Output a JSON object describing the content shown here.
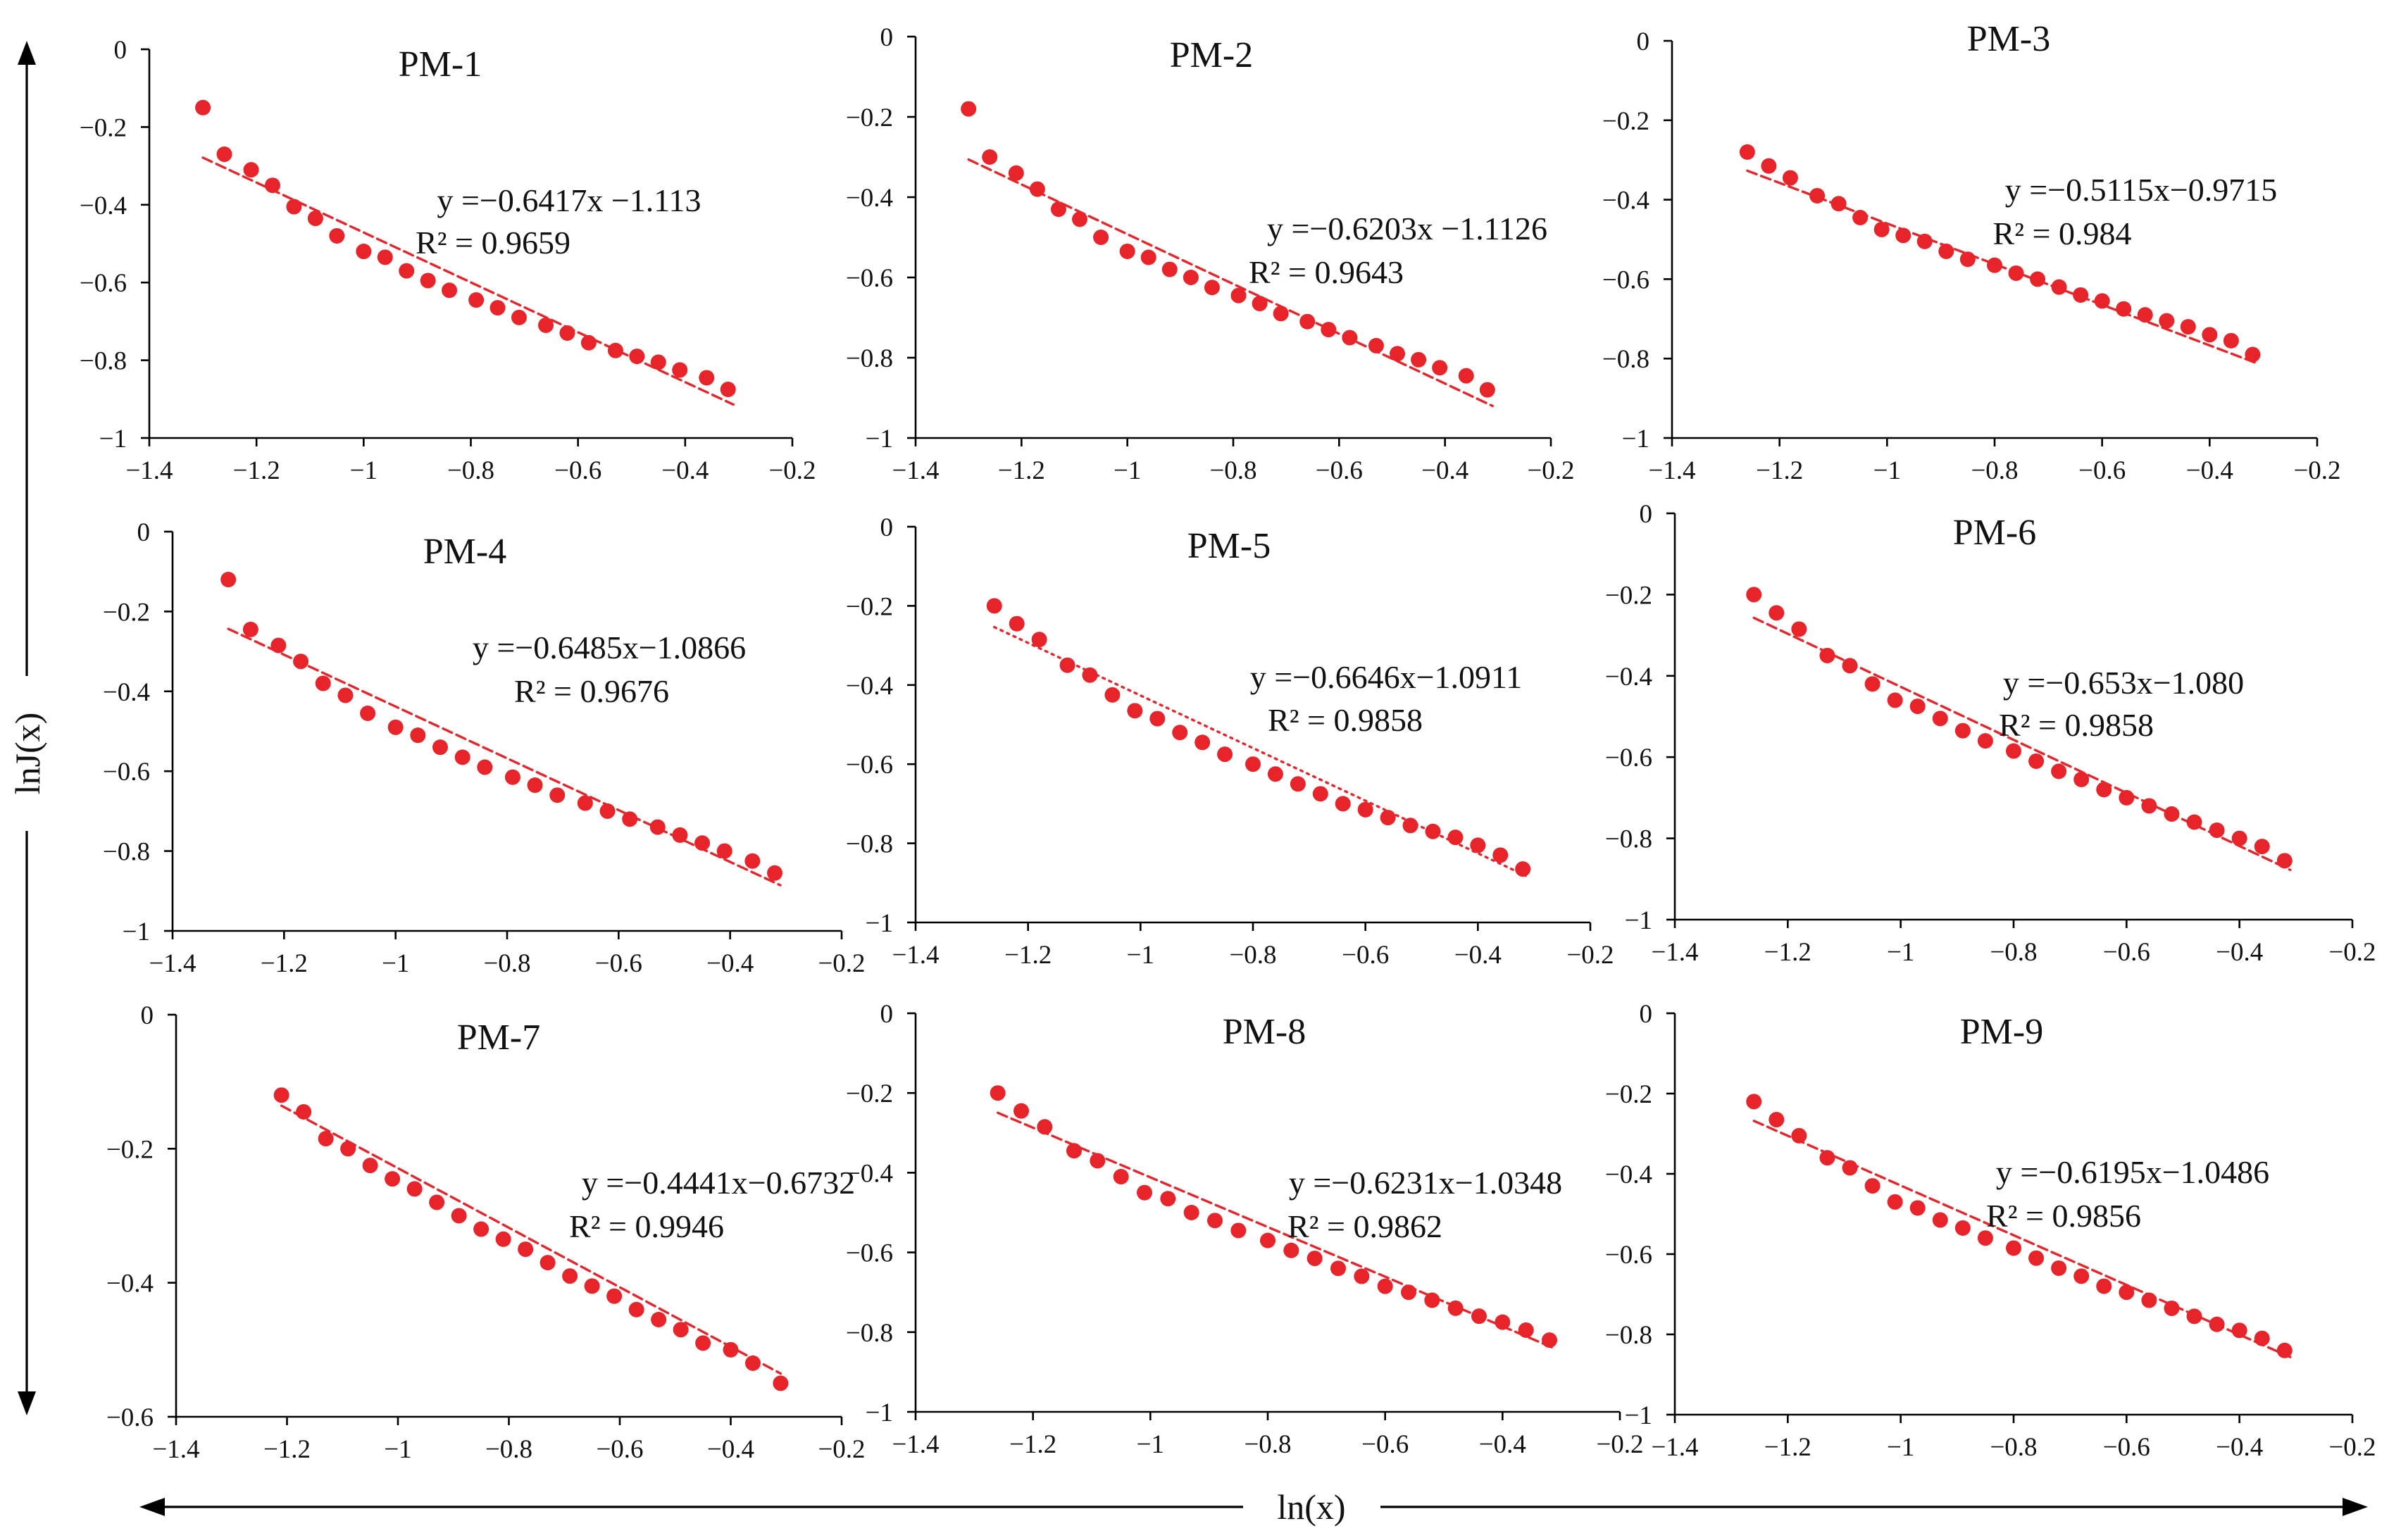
{
  "figure": {
    "x_axis_title": "ln(x)",
    "y_axis_title": "lnJ(x)",
    "point_color": "#e8242b",
    "trend_color": "#e8242b"
  },
  "chart_data": [
    {
      "type": "scatter",
      "title": "PM-1",
      "equation": "y =−0.6417x −1.113",
      "r2": "R² = 0.9659",
      "slope": -0.6417,
      "intercept": -1.113,
      "trend_style": "dashed",
      "xlim": [
        -1.4,
        -0.2
      ],
      "ylim": [
        -1,
        0
      ],
      "xticks": [
        -1.4,
        -1.2,
        -1,
        -0.8,
        -0.6,
        -0.4,
        -0.2
      ],
      "xtick_labels": [
        "−1.4",
        "−1.2",
        "−1",
        "−0.8",
        "−0.6",
        "−0.4",
        "−0.2"
      ],
      "yticks": [
        0,
        -0.2,
        -0.4,
        -0.6,
        -0.8,
        -1
      ],
      "ytick_labels": [
        "0",
        "−0.2",
        "−0.4",
        "−0.6",
        "−0.8",
        "−1"
      ],
      "trend_x": [
        -1.3,
        -0.31
      ],
      "x": [
        -1.3,
        -1.26,
        -1.21,
        -1.17,
        -1.13,
        -1.09,
        -1.05,
        -1.0,
        -0.96,
        -0.92,
        -0.88,
        -0.84,
        -0.79,
        -0.75,
        -0.71,
        -0.66,
        -0.62,
        -0.58,
        -0.53,
        -0.49,
        -0.45,
        -0.41,
        -0.36,
        -0.32
      ],
      "y": [
        -0.15,
        -0.27,
        -0.31,
        -0.35,
        -0.405,
        -0.435,
        -0.48,
        -0.52,
        -0.535,
        -0.57,
        -0.595,
        -0.62,
        -0.645,
        -0.665,
        -0.69,
        -0.71,
        -0.73,
        -0.755,
        -0.775,
        -0.79,
        -0.805,
        -0.825,
        -0.845,
        -0.875
      ]
    },
    {
      "type": "scatter",
      "title": "PM-2",
      "equation": "y =−0.6203x −1.1126",
      "r2": "R² = 0.9643",
      "slope": -0.6203,
      "intercept": -1.1126,
      "trend_style": "dashed",
      "xlim": [
        -1.4,
        -0.2
      ],
      "ylim": [
        -1,
        0
      ],
      "xticks": [
        -1.4,
        -1.2,
        -1,
        -0.8,
        -0.6,
        -0.4,
        -0.2
      ],
      "xtick_labels": [
        "−1.4",
        "−1.2",
        "−1",
        "−0.8",
        "−0.6",
        "−0.4",
        "−0.2"
      ],
      "yticks": [
        0,
        -0.2,
        -0.4,
        -0.6,
        -0.8,
        -1
      ],
      "ytick_labels": [
        "0",
        "−0.2",
        "−0.4",
        "−0.6",
        "−0.8",
        "−1"
      ],
      "trend_x": [
        -1.3,
        -0.31
      ],
      "x": [
        -1.3,
        -1.26,
        -1.21,
        -1.17,
        -1.13,
        -1.09,
        -1.05,
        -1.0,
        -0.96,
        -0.92,
        -0.88,
        -0.84,
        -0.79,
        -0.75,
        -0.71,
        -0.66,
        -0.62,
        -0.58,
        -0.53,
        -0.49,
        -0.45,
        -0.41,
        -0.36,
        -0.32
      ],
      "y": [
        -0.18,
        -0.3,
        -0.34,
        -0.38,
        -0.43,
        -0.455,
        -0.5,
        -0.535,
        -0.55,
        -0.58,
        -0.6,
        -0.625,
        -0.645,
        -0.665,
        -0.69,
        -0.71,
        -0.73,
        -0.75,
        -0.77,
        -0.79,
        -0.805,
        -0.825,
        -0.845,
        -0.88
      ]
    },
    {
      "type": "scatter",
      "title": "PM-3",
      "equation": "y =−0.5115x−0.9715",
      "r2": "R² = 0.984",
      "slope": -0.5115,
      "intercept": -0.9715,
      "trend_style": "dashed",
      "xlim": [
        -1.4,
        -0.2
      ],
      "ylim": [
        -1,
        0
      ],
      "xticks": [
        -1.4,
        -1.2,
        -1,
        -0.8,
        -0.6,
        -0.4,
        -0.2
      ],
      "xtick_labels": [
        "−1.4",
        "−1.2",
        "−1",
        "−0.8",
        "−0.6",
        "−0.4",
        "−0.2"
      ],
      "yticks": [
        0,
        -0.2,
        -0.4,
        -0.6,
        -0.8,
        -1
      ],
      "ytick_labels": [
        "0",
        "−0.2",
        "−0.4",
        "−0.6",
        "−0.8",
        "−1"
      ],
      "trend_x": [
        -1.26,
        -0.31
      ],
      "x": [
        -1.26,
        -1.22,
        -1.18,
        -1.13,
        -1.09,
        -1.05,
        -1.01,
        -0.97,
        -0.93,
        -0.89,
        -0.85,
        -0.8,
        -0.76,
        -0.72,
        -0.68,
        -0.64,
        -0.6,
        -0.56,
        -0.52,
        -0.48,
        -0.44,
        -0.4,
        -0.36,
        -0.32
      ],
      "y": [
        -0.28,
        -0.315,
        -0.345,
        -0.39,
        -0.41,
        -0.445,
        -0.475,
        -0.49,
        -0.505,
        -0.53,
        -0.55,
        -0.565,
        -0.585,
        -0.6,
        -0.62,
        -0.64,
        -0.655,
        -0.675,
        -0.69,
        -0.705,
        -0.72,
        -0.74,
        -0.755,
        -0.79
      ]
    },
    {
      "type": "scatter",
      "title": "PM-4",
      "equation": "y =−0.6485x−1.0866",
      "r2": "R² = 0.9676",
      "slope": -0.6485,
      "intercept": -1.0866,
      "trend_style": "dashed",
      "xlim": [
        -1.4,
        -0.2
      ],
      "ylim": [
        -1,
        0
      ],
      "xticks": [
        -1.4,
        -1.2,
        -1,
        -0.8,
        -0.6,
        -0.4,
        -0.2
      ],
      "xtick_labels": [
        "−1.4",
        "−1.2",
        "−1",
        "−0.8",
        "−0.6",
        "−0.4",
        "−0.2"
      ],
      "yticks": [
        0,
        -0.2,
        -0.4,
        -0.6,
        -0.8,
        -1
      ],
      "ytick_labels": [
        "0",
        "−0.2",
        "−0.4",
        "−0.6",
        "−0.8",
        "−1"
      ],
      "trend_x": [
        -1.3,
        -0.31
      ],
      "x": [
        -1.3,
        -1.26,
        -1.21,
        -1.17,
        -1.13,
        -1.09,
        -1.05,
        -1.0,
        -0.96,
        -0.92,
        -0.88,
        -0.84,
        -0.79,
        -0.75,
        -0.71,
        -0.66,
        -0.62,
        -0.58,
        -0.53,
        -0.49,
        -0.45,
        -0.41,
        -0.36,
        -0.32
      ],
      "y": [
        -0.12,
        -0.245,
        -0.285,
        -0.325,
        -0.38,
        -0.41,
        -0.455,
        -0.49,
        -0.51,
        -0.54,
        -0.565,
        -0.59,
        -0.615,
        -0.635,
        -0.66,
        -0.68,
        -0.7,
        -0.72,
        -0.74,
        -0.76,
        -0.78,
        -0.8,
        -0.825,
        -0.855
      ]
    },
    {
      "type": "scatter",
      "title": "PM-5",
      "equation": "y =−0.6646x−1.0911",
      "r2": "R² = 0.9858",
      "slope": -0.6646,
      "intercept": -1.0911,
      "trend_style": "dotted",
      "xlim": [
        -1.4,
        -0.2
      ],
      "ylim": [
        -1,
        0
      ],
      "xticks": [
        -1.4,
        -1.2,
        -1,
        -0.8,
        -0.6,
        -0.4,
        -0.2
      ],
      "xtick_labels": [
        "−1.4",
        "−1.2",
        "−1",
        "−0.8",
        "−0.6",
        "−0.4",
        "−0.2"
      ],
      "yticks": [
        0,
        -0.2,
        -0.4,
        -0.6,
        -0.8,
        -1
      ],
      "ytick_labels": [
        "0",
        "−0.2",
        "−0.4",
        "−0.6",
        "−0.8",
        "−1"
      ],
      "trend_x": [
        -1.26,
        -0.31
      ],
      "x": [
        -1.26,
        -1.22,
        -1.18,
        -1.13,
        -1.09,
        -1.05,
        -1.01,
        -0.97,
        -0.93,
        -0.89,
        -0.85,
        -0.8,
        -0.76,
        -0.72,
        -0.68,
        -0.64,
        -0.6,
        -0.56,
        -0.52,
        -0.48,
        -0.44,
        -0.4,
        -0.36,
        -0.32
      ],
      "y": [
        -0.2,
        -0.245,
        -0.285,
        -0.35,
        -0.375,
        -0.425,
        -0.465,
        -0.485,
        -0.52,
        -0.545,
        -0.575,
        -0.6,
        -0.625,
        -0.65,
        -0.675,
        -0.7,
        -0.715,
        -0.735,
        -0.755,
        -0.77,
        -0.785,
        -0.805,
        -0.83,
        -0.865
      ]
    },
    {
      "type": "scatter",
      "title": "PM-6",
      "equation": "y =−0.653x−1.080",
      "r2": "R² = 0.9858",
      "slope": -0.653,
      "intercept": -1.08,
      "trend_style": "dashed",
      "xlim": [
        -1.4,
        -0.2
      ],
      "ylim": [
        -1,
        0
      ],
      "xticks": [
        -1.4,
        -1.2,
        -1,
        -0.8,
        -0.6,
        -0.4,
        -0.2
      ],
      "xtick_labels": [
        "−1.4",
        "−1.2",
        "−1",
        "−0.8",
        "−0.6",
        "−0.4",
        "−0.2"
      ],
      "yticks": [
        0,
        -0.2,
        -0.4,
        -0.6,
        -0.8,
        -1
      ],
      "ytick_labels": [
        "0",
        "−0.2",
        "−0.4",
        "−0.6",
        "−0.8",
        "−1"
      ],
      "trend_x": [
        -1.26,
        -0.31
      ],
      "x": [
        -1.26,
        -1.22,
        -1.18,
        -1.13,
        -1.09,
        -1.05,
        -1.01,
        -0.97,
        -0.93,
        -0.89,
        -0.85,
        -0.8,
        -0.76,
        -0.72,
        -0.68,
        -0.64,
        -0.6,
        -0.56,
        -0.52,
        -0.48,
        -0.44,
        -0.4,
        -0.36,
        -0.32
      ],
      "y": [
        -0.2,
        -0.245,
        -0.285,
        -0.35,
        -0.375,
        -0.42,
        -0.46,
        -0.475,
        -0.505,
        -0.535,
        -0.56,
        -0.585,
        -0.61,
        -0.635,
        -0.655,
        -0.68,
        -0.7,
        -0.72,
        -0.74,
        -0.76,
        -0.78,
        -0.8,
        -0.82,
        -0.855
      ]
    },
    {
      "type": "scatter",
      "title": "PM-7",
      "equation": "y =−0.4441x−0.6732",
      "r2": "R² = 0.9946",
      "slope": -0.4441,
      "intercept": -0.6732,
      "trend_style": "dashed",
      "xlim": [
        -1.4,
        -0.2
      ],
      "ylim": [
        -0.6,
        0
      ],
      "xticks": [
        -1.4,
        -1.2,
        -1,
        -0.8,
        -0.6,
        -0.4,
        -0.2
      ],
      "xtick_labels": [
        "−1.4",
        "−1.2",
        "−1",
        "−0.8",
        "−0.6",
        "−0.4",
        "−0.2"
      ],
      "yticks": [
        0,
        -0.2,
        -0.4,
        -0.6
      ],
      "ytick_labels": [
        "0",
        "−0.2",
        "−0.4",
        "−0.6"
      ],
      "trend_x": [
        -1.21,
        -0.31
      ],
      "x": [
        -1.21,
        -1.17,
        -1.13,
        -1.09,
        -1.05,
        -1.01,
        -0.97,
        -0.93,
        -0.89,
        -0.85,
        -0.81,
        -0.77,
        -0.73,
        -0.69,
        -0.65,
        -0.61,
        -0.57,
        -0.53,
        -0.49,
        -0.45,
        -0.4,
        -0.36,
        -0.31
      ],
      "y": [
        -0.12,
        -0.145,
        -0.185,
        -0.2,
        -0.225,
        -0.245,
        -0.26,
        -0.28,
        -0.3,
        -0.32,
        -0.335,
        -0.35,
        -0.37,
        -0.39,
        -0.405,
        -0.42,
        -0.44,
        -0.455,
        -0.47,
        -0.49,
        -0.5,
        -0.52,
        -0.55
      ]
    },
    {
      "type": "scatter",
      "title": "PM-8",
      "equation": "y =−0.6231x−1.0348",
      "r2": "R² = 0.9862",
      "slope": -0.6231,
      "intercept": -1.0348,
      "trend_style": "dashed",
      "xlim": [
        -1.4,
        -0.2
      ],
      "ylim": [
        -1,
        0
      ],
      "xticks": [
        -1.4,
        -1.2,
        -1,
        -0.8,
        -0.6,
        -0.4,
        -0.2
      ],
      "xtick_labels": [
        "−1.4",
        "−1.2",
        "−1",
        "−0.8",
        "−0.6",
        "−0.4",
        "−0.2"
      ],
      "yticks": [
        0,
        -0.2,
        -0.4,
        -0.6,
        -0.8,
        -1
      ],
      "ytick_labels": [
        "0",
        "−0.2",
        "−0.4",
        "−0.6",
        "−0.8",
        "−1"
      ],
      "trend_x": [
        -1.26,
        -0.31
      ],
      "x": [
        -1.26,
        -1.22,
        -1.18,
        -1.13,
        -1.09,
        -1.05,
        -1.01,
        -0.97,
        -0.93,
        -0.89,
        -0.85,
        -0.8,
        -0.76,
        -0.72,
        -0.68,
        -0.64,
        -0.6,
        -0.56,
        -0.52,
        -0.48,
        -0.44,
        -0.4,
        -0.36,
        -0.32
      ],
      "y": [
        -0.2,
        -0.245,
        -0.285,
        -0.345,
        -0.37,
        -0.41,
        -0.45,
        -0.465,
        -0.5,
        -0.52,
        -0.545,
        -0.57,
        -0.595,
        -0.615,
        -0.64,
        -0.66,
        -0.685,
        -0.7,
        -0.72,
        -0.74,
        -0.76,
        -0.775,
        -0.795,
        -0.82
      ]
    },
    {
      "type": "scatter",
      "title": "PM-9",
      "equation": "y =−0.6195x−1.0486",
      "r2": "R² = 0.9856",
      "slope": -0.6195,
      "intercept": -1.0486,
      "trend_style": "dashed",
      "xlim": [
        -1.4,
        -0.2
      ],
      "ylim": [
        -1,
        0
      ],
      "xticks": [
        -1.4,
        -1.2,
        -1,
        -0.8,
        -0.6,
        -0.4,
        -0.2
      ],
      "xtick_labels": [
        "−1.4",
        "−1.2",
        "−1",
        "−0.8",
        "−0.6",
        "−0.4",
        "−0.2"
      ],
      "yticks": [
        0,
        -0.2,
        -0.4,
        -0.6,
        -0.8,
        -1
      ],
      "ytick_labels": [
        "0",
        "−0.2",
        "−0.4",
        "−0.6",
        "−0.8",
        "−1"
      ],
      "trend_x": [
        -1.26,
        -0.31
      ],
      "x": [
        -1.26,
        -1.22,
        -1.18,
        -1.13,
        -1.09,
        -1.05,
        -1.01,
        -0.97,
        -0.93,
        -0.89,
        -0.85,
        -0.8,
        -0.76,
        -0.72,
        -0.68,
        -0.64,
        -0.6,
        -0.56,
        -0.52,
        -0.48,
        -0.44,
        -0.4,
        -0.36,
        -0.32
      ],
      "y": [
        -0.22,
        -0.265,
        -0.305,
        -0.36,
        -0.385,
        -0.43,
        -0.47,
        -0.485,
        -0.515,
        -0.535,
        -0.56,
        -0.585,
        -0.61,
        -0.635,
        -0.655,
        -0.68,
        -0.695,
        -0.715,
        -0.735,
        -0.755,
        -0.775,
        -0.79,
        -0.81,
        -0.84
      ]
    }
  ]
}
